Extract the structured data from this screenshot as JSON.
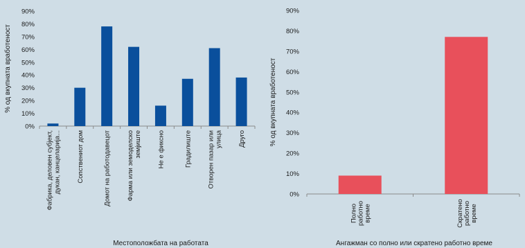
{
  "chart_data": [
    {
      "type": "bar",
      "categories": [
        "Фабрика, деловен субјект, дукан, канцеларија...",
        "Сопствениот дом",
        "Домот на работодавецот",
        "Фарма или земоделско земјиште",
        "Не е фиксно",
        "Градилиште",
        "Отворен пазар или улица",
        "Друго"
      ],
      "category_lines": [
        [
          "Фабрика, деловен субјект,",
          "дукан, канцеларија..."
        ],
        [
          "Сопствениот дом"
        ],
        [
          "Домот на работодавецот"
        ],
        [
          "Фарма или земоделско",
          "земјиште"
        ],
        [
          "Не е фиксно"
        ],
        [
          "Градилиште"
        ],
        [
          "Отворен пазар или",
          "улица"
        ],
        [
          "Друго"
        ]
      ],
      "values": [
        2,
        30,
        78,
        62,
        16,
        37,
        61,
        38
      ],
      "ylim": [
        0,
        90
      ],
      "yticks": [
        "0%",
        "10%",
        "20%",
        "30%",
        "40%",
        "50%",
        "60%",
        "70%",
        "80%",
        "90%"
      ],
      "ylabel": "% од вкупната вработеност",
      "xlabel": "Местоположбата на работата",
      "color": "#0a4f9c",
      "grid": false
    },
    {
      "type": "bar",
      "categories": [
        "Полно работно време",
        "Скратено работно време"
      ],
      "category_lines": [
        [
          "Полно",
          "работно",
          "време"
        ],
        [
          "Скратено",
          "работно",
          "време"
        ]
      ],
      "values": [
        9,
        77
      ],
      "ylim": [
        0,
        90
      ],
      "yticks": [
        "0%",
        "10%",
        "20%",
        "30%",
        "40%",
        "50%",
        "60%",
        "70%",
        "80%",
        "90%"
      ],
      "ylabel": "% од вкупната вработеност",
      "xlabel": "Ангажман со полно или скратено работно време",
      "color": "#e8505b",
      "grid": false
    }
  ]
}
